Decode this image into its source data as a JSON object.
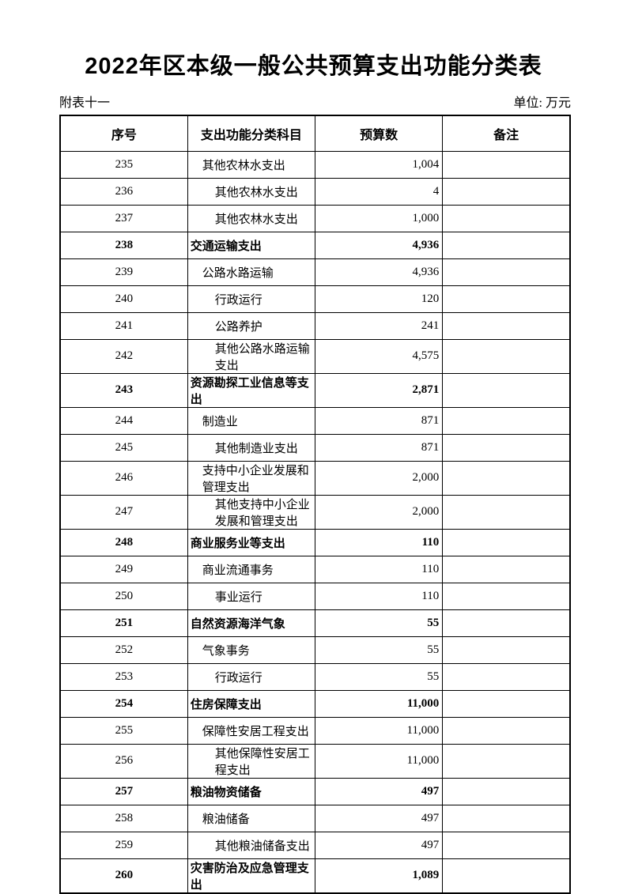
{
  "doc": {
    "title": "2022年区本级一般公共预算支出功能分类表",
    "appendix_label": "附表十一",
    "unit_label": "单位: 万元"
  },
  "table": {
    "headers": [
      "序号",
      "支出功能分类科目",
      "预算数",
      "备注"
    ],
    "rows": [
      {
        "no": "235",
        "name": "其他农林水支出",
        "value": "1,004",
        "level": 1,
        "bold": false,
        "remark": ""
      },
      {
        "no": "236",
        "name": "其他农林水支出",
        "value": "4",
        "level": 2,
        "bold": false,
        "remark": ""
      },
      {
        "no": "237",
        "name": "其他农林水支出",
        "value": "1,000",
        "level": 2,
        "bold": false,
        "remark": ""
      },
      {
        "no": "238",
        "name": "交通运输支出",
        "value": "4,936",
        "level": 0,
        "bold": true,
        "remark": ""
      },
      {
        "no": "239",
        "name": "公路水路运输",
        "value": "4,936",
        "level": 1,
        "bold": false,
        "remark": ""
      },
      {
        "no": "240",
        "name": "行政运行",
        "value": "120",
        "level": 2,
        "bold": false,
        "remark": ""
      },
      {
        "no": "241",
        "name": "公路养护",
        "value": "241",
        "level": 2,
        "bold": false,
        "remark": ""
      },
      {
        "no": "242",
        "name": "其他公路水路运输支出",
        "value": "4,575",
        "level": 2,
        "bold": false,
        "remark": ""
      },
      {
        "no": "243",
        "name": "资源勘探工业信息等支出",
        "value": "2,871",
        "level": 0,
        "bold": true,
        "remark": ""
      },
      {
        "no": "244",
        "name": "制造业",
        "value": "871",
        "level": 1,
        "bold": false,
        "remark": ""
      },
      {
        "no": "245",
        "name": "其他制造业支出",
        "value": "871",
        "level": 2,
        "bold": false,
        "remark": ""
      },
      {
        "no": "246",
        "name": "支持中小企业发展和管理支出",
        "value": "2,000",
        "level": 1,
        "bold": false,
        "remark": ""
      },
      {
        "no": "247",
        "name": "其他支持中小企业发展和管理支出",
        "value": "2,000",
        "level": 2,
        "bold": false,
        "remark": ""
      },
      {
        "no": "248",
        "name": "商业服务业等支出",
        "value": "110",
        "level": 0,
        "bold": true,
        "remark": ""
      },
      {
        "no": "249",
        "name": "商业流通事务",
        "value": "110",
        "level": 1,
        "bold": false,
        "remark": ""
      },
      {
        "no": "250",
        "name": "事业运行",
        "value": "110",
        "level": 2,
        "bold": false,
        "remark": ""
      },
      {
        "no": "251",
        "name": "自然资源海洋气象",
        "value": "55",
        "level": 0,
        "bold": true,
        "remark": ""
      },
      {
        "no": "252",
        "name": "气象事务",
        "value": "55",
        "level": 1,
        "bold": false,
        "remark": ""
      },
      {
        "no": "253",
        "name": "行政运行",
        "value": "55",
        "level": 2,
        "bold": false,
        "remark": ""
      },
      {
        "no": "254",
        "name": "住房保障支出",
        "value": "11,000",
        "level": 0,
        "bold": true,
        "remark": ""
      },
      {
        "no": "255",
        "name": "保障性安居工程支出",
        "value": "11,000",
        "level": 1,
        "bold": false,
        "remark": ""
      },
      {
        "no": "256",
        "name": "其他保障性安居工程支出",
        "value": "11,000",
        "level": 2,
        "bold": false,
        "remark": ""
      },
      {
        "no": "257",
        "name": "粮油物资储备",
        "value": "497",
        "level": 0,
        "bold": true,
        "remark": ""
      },
      {
        "no": "258",
        "name": "粮油储备",
        "value": "497",
        "level": 1,
        "bold": false,
        "remark": ""
      },
      {
        "no": "259",
        "name": "其他粮油储备支出",
        "value": "497",
        "level": 2,
        "bold": false,
        "remark": ""
      },
      {
        "no": "260",
        "name": "灾害防治及应急管理支出",
        "value": "1,089",
        "level": 0,
        "bold": true,
        "remark": ""
      }
    ]
  }
}
